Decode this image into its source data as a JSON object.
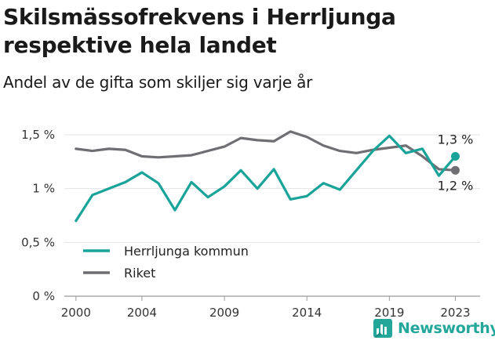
{
  "title": "Skilsmässofrekvens i Herrljunga respektive hela landet",
  "subtitle": "Andel av de gifta som skiljer sig varje år",
  "brand": {
    "name": "Newsworthy",
    "icon": "newsworthy-logo-icon",
    "color": "#23a79a"
  },
  "chart_data": {
    "type": "line",
    "title": "Skilsmässofrekvens i Herrljunga respektive hela landet",
    "subtitle": "Andel av de gifta som skiljer sig varje år",
    "xlabel": "",
    "ylabel": "",
    "x": [
      2000,
      2001,
      2002,
      2003,
      2004,
      2005,
      2006,
      2007,
      2008,
      2009,
      2010,
      2011,
      2012,
      2013,
      2014,
      2015,
      2016,
      2017,
      2018,
      2019,
      2020,
      2021,
      2022,
      2023
    ],
    "xticks": [
      2000,
      2004,
      2009,
      2014,
      2019,
      2023
    ],
    "xtick_labels": [
      "2000",
      "2004",
      "2009",
      "2014",
      "2019",
      "2023"
    ],
    "ylim": [
      0,
      1.6
    ],
    "yticks": [
      0,
      0.5,
      1.0,
      1.5
    ],
    "ytick_labels": [
      "0 %",
      "0,5 %",
      "1 %",
      "1,5 %"
    ],
    "grid": "horizontal",
    "legend_position": "bottom-left",
    "series": [
      {
        "name": "Herrljunga kommun",
        "color": "#1aa399",
        "values": [
          0.7,
          0.94,
          1.0,
          1.06,
          1.15,
          1.05,
          0.8,
          1.06,
          0.92,
          1.02,
          1.17,
          1.0,
          1.18,
          0.9,
          0.93,
          1.05,
          0.99,
          1.17,
          1.35,
          1.49,
          1.33,
          1.37,
          1.12,
          1.3
        ],
        "end_label": "1,3 %"
      },
      {
        "name": "Riket",
        "color": "#6f6e72",
        "values": [
          1.37,
          1.35,
          1.37,
          1.36,
          1.3,
          1.29,
          1.3,
          1.31,
          1.35,
          1.39,
          1.47,
          1.45,
          1.44,
          1.53,
          1.48,
          1.4,
          1.35,
          1.33,
          1.36,
          1.38,
          1.4,
          1.3,
          1.18,
          1.17
        ],
        "end_label": "1,2 %"
      }
    ]
  }
}
